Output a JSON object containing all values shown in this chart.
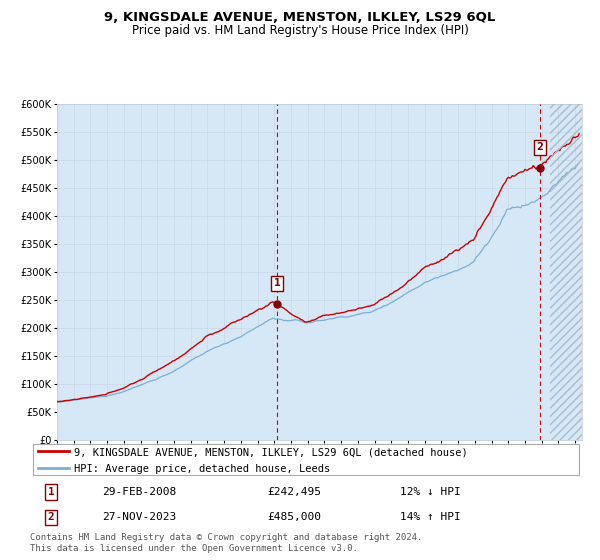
{
  "title": "9, KINGSDALE AVENUE, MENSTON, ILKLEY, LS29 6QL",
  "subtitle": "Price paid vs. HM Land Registry's House Price Index (HPI)",
  "ylim": [
    0,
    600000
  ],
  "yticks": [
    0,
    50000,
    100000,
    150000,
    200000,
    250000,
    300000,
    350000,
    400000,
    450000,
    500000,
    550000,
    600000
  ],
  "ytick_labels": [
    "£0",
    "£50K",
    "£100K",
    "£150K",
    "£200K",
    "£250K",
    "£300K",
    "£350K",
    "£400K",
    "£450K",
    "£500K",
    "£550K",
    "£600K"
  ],
  "hpi_color": "#7bafd4",
  "hpi_fill_color": "#d6e8f5",
  "price_color": "#cc0000",
  "sale1_price": 242495,
  "sale2_price": 485000,
  "legend_line1": "9, KINGSDALE AVENUE, MENSTON, ILKLEY, LS29 6QL (detached house)",
  "legend_line2": "HPI: Average price, detached house, Leeds",
  "footnote": "Contains HM Land Registry data © Crown copyright and database right 2024.\nThis data is licensed under the Open Government Licence v3.0.",
  "title_fontsize": 9.5,
  "subtitle_fontsize": 8.5,
  "tick_fontsize": 7,
  "legend_fontsize": 7.5,
  "annotation_fontsize": 8,
  "footnote_fontsize": 6.5
}
